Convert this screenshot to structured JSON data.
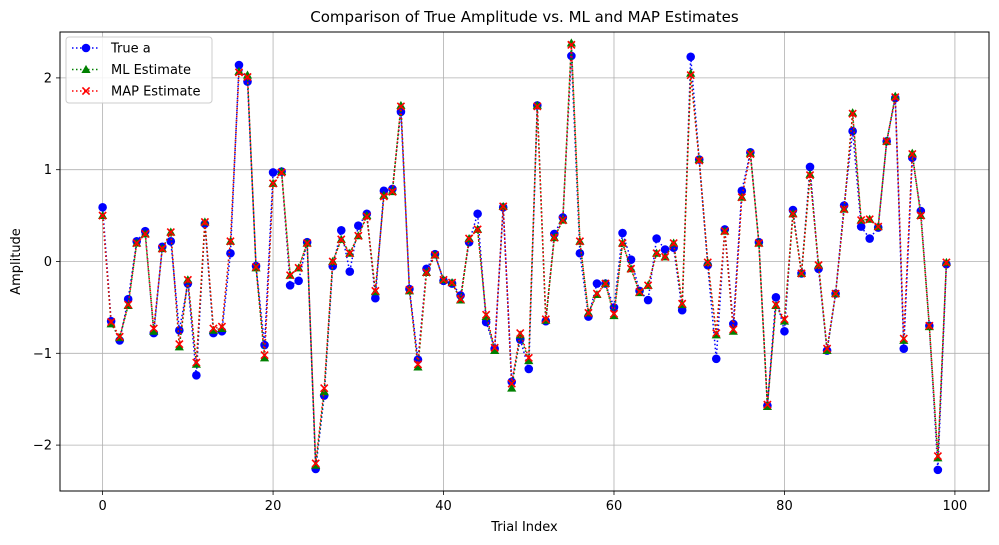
{
  "chart_data": {
    "type": "line",
    "title": "Comparison of True Amplitude vs. ML and MAP Estimates",
    "xlabel": "Trial Index",
    "ylabel": "Amplitude",
    "xlim": [
      -5,
      104
    ],
    "ylim": [
      -2.5,
      2.5
    ],
    "xticks": [
      0,
      20,
      40,
      60,
      80,
      100
    ],
    "yticks": [
      -2,
      -1,
      0,
      1,
      2
    ],
    "xtick_labels": [
      "0",
      "20",
      "40",
      "60",
      "80",
      "100"
    ],
    "ytick_labels": [
      "−2",
      "−1",
      "0",
      "1",
      "2"
    ],
    "grid": true,
    "legend_position": "top-left",
    "x": [
      0,
      1,
      2,
      3,
      4,
      5,
      6,
      7,
      8,
      9,
      10,
      11,
      12,
      13,
      14,
      15,
      16,
      17,
      18,
      19,
      20,
      21,
      22,
      23,
      24,
      25,
      26,
      27,
      28,
      29,
      30,
      31,
      32,
      33,
      34,
      35,
      36,
      37,
      38,
      39,
      40,
      41,
      42,
      43,
      44,
      45,
      46,
      47,
      48,
      49,
      50,
      51,
      52,
      53,
      54,
      55,
      56,
      57,
      58,
      59,
      60,
      61,
      62,
      63,
      64,
      65,
      66,
      67,
      68,
      69,
      70,
      71,
      72,
      73,
      74,
      75,
      76,
      77,
      78,
      79,
      80,
      81,
      82,
      83,
      84,
      85,
      86,
      87,
      88,
      89,
      90,
      91,
      92,
      93,
      94,
      95,
      96,
      97,
      98,
      99
    ],
    "series": [
      {
        "name": "True a",
        "color": "#0000ff",
        "marker": "circle",
        "values": [
          0.59,
          -0.65,
          -0.86,
          -0.41,
          0.22,
          0.33,
          -0.78,
          0.16,
          0.22,
          -0.75,
          -0.24,
          -1.24,
          0.41,
          -0.78,
          -0.76,
          0.09,
          2.14,
          1.96,
          -0.05,
          -0.91,
          0.97,
          0.98,
          -0.26,
          -0.21,
          0.21,
          -2.26,
          -1.46,
          -0.05,
          0.34,
          -0.11,
          0.39,
          0.52,
          -0.4,
          0.77,
          0.79,
          1.63,
          -0.3,
          -1.07,
          -0.08,
          0.08,
          -0.21,
          -0.24,
          -0.37,
          0.21,
          0.52,
          -0.66,
          -0.95,
          0.59,
          -1.31,
          -0.85,
          -1.17,
          1.7,
          -0.65,
          0.3,
          0.48,
          2.24,
          0.09,
          -0.6,
          -0.24,
          -0.24,
          -0.5,
          0.31,
          0.02,
          -0.32,
          -0.42,
          0.25,
          0.13,
          0.15,
          -0.53,
          2.23,
          1.11,
          -0.04,
          -1.06,
          0.35,
          -0.68,
          0.77,
          1.19,
          0.21,
          -1.57,
          -0.39,
          -0.76,
          0.56,
          -0.13,
          1.03,
          -0.08,
          -0.97,
          -0.35,
          0.61,
          1.42,
          0.38,
          0.25,
          0.37,
          1.31,
          1.78,
          -0.95,
          1.13,
          0.55,
          -0.7,
          -2.27,
          -0.03
        ]
      },
      {
        "name": "ML Estimate",
        "color": "#008000",
        "marker": "triangle",
        "values": [
          0.5,
          -0.68,
          -0.83,
          -0.48,
          0.2,
          0.3,
          -0.76,
          0.14,
          0.32,
          -0.93,
          -0.2,
          -1.12,
          0.43,
          -0.75,
          -0.73,
          0.22,
          2.07,
          2.03,
          -0.07,
          -1.05,
          0.85,
          0.98,
          -0.15,
          -0.07,
          0.2,
          -2.22,
          -1.42,
          0.0,
          0.24,
          0.09,
          0.28,
          0.5,
          -0.33,
          0.72,
          0.76,
          1.7,
          -0.32,
          -1.15,
          -0.12,
          0.07,
          -0.2,
          -0.23,
          -0.42,
          0.25,
          0.35,
          -0.6,
          -0.97,
          0.6,
          -1.38,
          -0.8,
          -1.08,
          1.7,
          -0.64,
          0.26,
          0.45,
          2.38,
          0.22,
          -0.56,
          -0.36,
          -0.24,
          -0.59,
          0.2,
          -0.08,
          -0.34,
          -0.26,
          0.09,
          0.05,
          0.2,
          -0.47,
          2.05,
          1.11,
          -0.01,
          -0.8,
          0.33,
          -0.76,
          0.7,
          1.18,
          0.2,
          -1.58,
          -0.48,
          -0.65,
          0.52,
          -0.13,
          0.95,
          -0.04,
          -0.97,
          -0.35,
          0.57,
          1.62,
          0.45,
          0.46,
          0.38,
          1.31,
          1.8,
          -0.86,
          1.18,
          0.5,
          -0.71,
          -2.14,
          -0.01
        ]
      },
      {
        "name": "MAP Estimate",
        "color": "#ff0000",
        "marker": "x",
        "values": [
          0.5,
          -0.66,
          -0.82,
          -0.47,
          0.2,
          0.3,
          -0.73,
          0.14,
          0.32,
          -0.9,
          -0.2,
          -1.1,
          0.43,
          -0.73,
          -0.71,
          0.22,
          2.06,
          2.01,
          -0.06,
          -1.02,
          0.85,
          0.97,
          -0.15,
          -0.07,
          0.2,
          -2.2,
          -1.38,
          0.0,
          0.24,
          0.09,
          0.28,
          0.49,
          -0.32,
          0.71,
          0.76,
          1.69,
          -0.31,
          -1.12,
          -0.12,
          0.07,
          -0.2,
          -0.23,
          -0.41,
          0.25,
          0.35,
          -0.58,
          -0.94,
          0.6,
          -1.33,
          -0.78,
          -1.05,
          1.69,
          -0.63,
          0.26,
          0.45,
          2.36,
          0.22,
          -0.56,
          -0.35,
          -0.24,
          -0.57,
          0.2,
          -0.08,
          -0.33,
          -0.26,
          0.09,
          0.05,
          0.2,
          -0.46,
          2.03,
          1.1,
          -0.01,
          -0.78,
          0.33,
          -0.74,
          0.7,
          1.17,
          0.2,
          -1.56,
          -0.47,
          -0.63,
          0.52,
          -0.13,
          0.94,
          -0.04,
          -0.95,
          -0.35,
          0.57,
          1.61,
          0.45,
          0.46,
          0.38,
          1.31,
          1.79,
          -0.84,
          1.17,
          0.5,
          -0.7,
          -2.12,
          -0.01
        ]
      }
    ]
  }
}
